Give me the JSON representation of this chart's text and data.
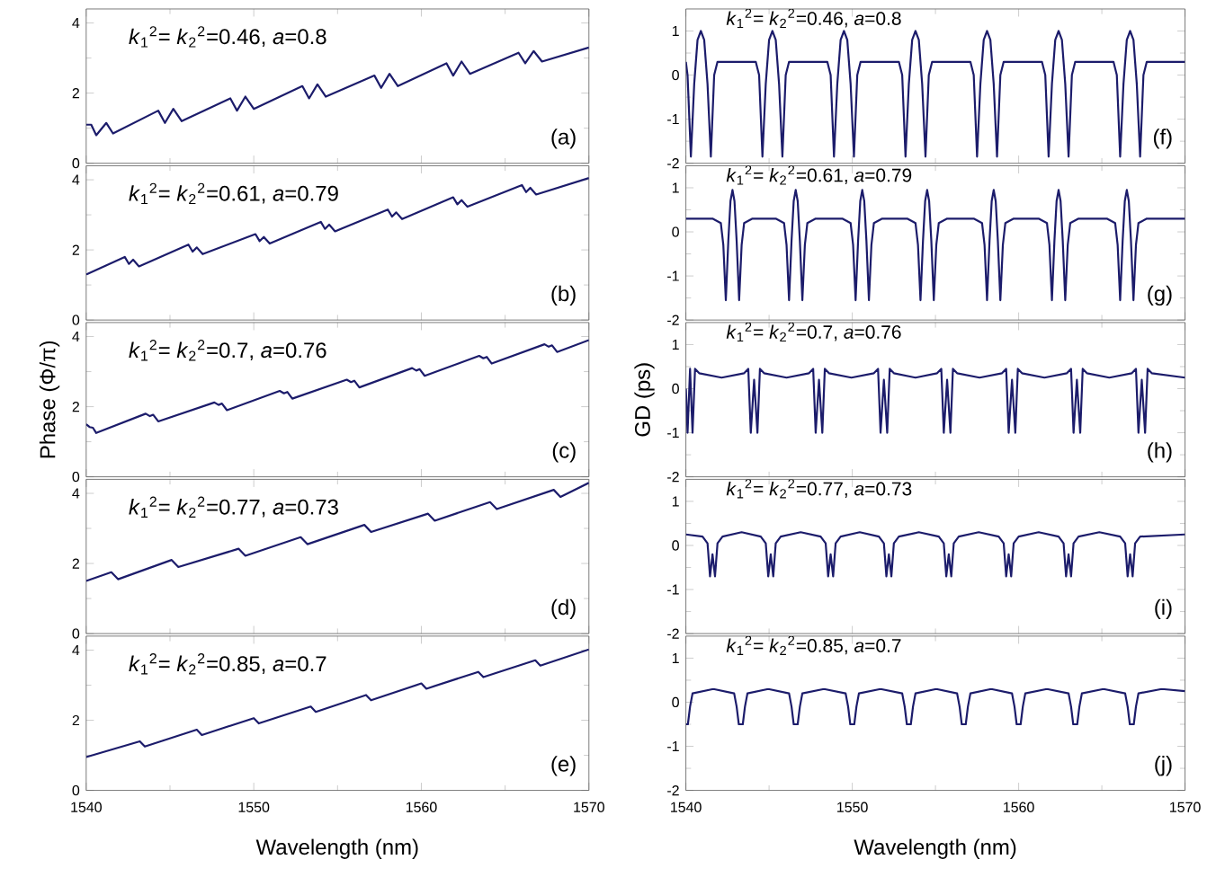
{
  "chart_data": [
    {
      "type": "line",
      "color": "#1c1c6b",
      "xlim": [
        1540,
        1570
      ],
      "ylim": [
        0,
        4.4
      ],
      "xticks": [
        1540,
        1550,
        1560,
        1570
      ],
      "yticks": [
        0,
        2,
        4
      ],
      "tick_labels": "y",
      "annotations": [
        "*k*$_{1}$$^{2}$= *k*$_{2}$$^{2}$=0.46, *a*=0.8",
        "(a)"
      ],
      "x": [
        1540,
        1540.3,
        1540.6,
        1541.2,
        1541.6,
        1544.3,
        1544.7,
        1545.2,
        1545.7,
        1548.6,
        1549.0,
        1549.5,
        1550.0,
        1552.9,
        1553.3,
        1553.8,
        1554.3,
        1557.2,
        1557.6,
        1558.1,
        1558.6,
        1561.5,
        1561.9,
        1562.4,
        1562.9,
        1565.8,
        1566.2,
        1566.7,
        1567.2,
        1570
      ],
      "values": [
        1.1,
        1.1,
        0.8,
        1.15,
        0.85,
        1.5,
        1.15,
        1.55,
        1.2,
        1.85,
        1.5,
        1.9,
        1.55,
        2.2,
        1.85,
        2.25,
        1.9,
        2.5,
        2.15,
        2.55,
        2.2,
        2.85,
        2.5,
        2.9,
        2.55,
        3.15,
        2.85,
        3.2,
        2.9,
        3.3
      ]
    },
    {
      "type": "line",
      "color": "#1c1c6b",
      "xlim": [
        1540,
        1570
      ],
      "ylim": [
        0,
        4.4
      ],
      "xticks": [
        1540,
        1550,
        1560,
        1570
      ],
      "yticks": [
        0,
        2,
        4
      ],
      "tick_labels": "y",
      "annotations": [
        "*k*$_{1}$$^{2}$= *k*$_{2}$$^{2}$=0.61, *a*=0.79",
        "(b)"
      ],
      "x": [
        1540,
        1542.3,
        1542.55,
        1542.8,
        1543.15,
        1546.1,
        1546.35,
        1546.6,
        1546.95,
        1550.1,
        1550.35,
        1550.6,
        1550.95,
        1554.0,
        1554.25,
        1554.5,
        1554.85,
        1558.0,
        1558.25,
        1558.5,
        1558.85,
        1561.9,
        1562.15,
        1562.4,
        1562.75,
        1566.0,
        1566.25,
        1566.5,
        1566.85,
        1570
      ],
      "values": [
        1.3,
        1.8,
        1.6,
        1.72,
        1.53,
        2.15,
        1.95,
        2.07,
        1.88,
        2.45,
        2.25,
        2.37,
        2.18,
        2.8,
        2.6,
        2.72,
        2.53,
        3.15,
        2.95,
        3.07,
        2.88,
        3.5,
        3.3,
        3.42,
        3.23,
        3.85,
        3.65,
        3.77,
        3.58,
        4.05
      ]
    },
    {
      "type": "line",
      "color": "#1c1c6b",
      "xlim": [
        1540,
        1570
      ],
      "ylim": [
        0,
        4.4
      ],
      "xticks": [
        1540,
        1550,
        1560,
        1570
      ],
      "yticks": [
        0,
        2,
        4
      ],
      "tick_labels": "y",
      "ylabel": "Phase (Φ/π)",
      "annotations": [
        "*k*$_{1}$$^{2}$= *k*$_{2}$$^{2}$=0.7, *a*=0.76",
        "(c)"
      ],
      "x": [
        1540,
        1540.2,
        1540.4,
        1540.6,
        1543.55,
        1543.8,
        1544.0,
        1544.3,
        1547.65,
        1547.9,
        1548.1,
        1548.4,
        1551.55,
        1551.8,
        1552.0,
        1552.3,
        1555.55,
        1555.8,
        1556.0,
        1556.3,
        1559.45,
        1559.7,
        1559.9,
        1560.2,
        1563.45,
        1563.7,
        1563.9,
        1564.2,
        1567.35,
        1567.6,
        1567.8,
        1568.1,
        1570
      ],
      "values": [
        1.5,
        1.42,
        1.4,
        1.25,
        1.8,
        1.73,
        1.77,
        1.58,
        2.12,
        2.05,
        2.09,
        1.9,
        2.45,
        2.38,
        2.42,
        2.23,
        2.77,
        2.7,
        2.74,
        2.55,
        3.1,
        3.03,
        3.07,
        2.88,
        3.45,
        3.38,
        3.42,
        3.23,
        3.78,
        3.71,
        3.75,
        3.56,
        3.9
      ]
    },
    {
      "type": "line",
      "color": "#1c1c6b",
      "xlim": [
        1540,
        1570
      ],
      "ylim": [
        0,
        4.4
      ],
      "xticks": [
        1540,
        1550,
        1560,
        1570
      ],
      "yticks": [
        0,
        2,
        4
      ],
      "tick_labels": "y",
      "annotations": [
        "*k*$_{1}$$^{2}$= *k*$_{2}$$^{2}$=0.77, *a*=0.73",
        "(d)"
      ],
      "x": [
        1540,
        1541.5,
        1541.9,
        1545.1,
        1545.5,
        1549.1,
        1549.5,
        1552.8,
        1553.2,
        1556.6,
        1557.0,
        1560.4,
        1560.8,
        1564.1,
        1564.5,
        1567.9,
        1568.3,
        1570
      ],
      "values": [
        1.5,
        1.75,
        1.55,
        2.1,
        1.9,
        2.42,
        2.22,
        2.75,
        2.55,
        3.1,
        2.9,
        3.42,
        3.22,
        3.75,
        3.55,
        4.1,
        3.9,
        4.3
      ]
    },
    {
      "type": "line",
      "color": "#1c1c6b",
      "xlim": [
        1540,
        1570
      ],
      "ylim": [
        0,
        4.4
      ],
      "xticks": [
        1540,
        1550,
        1560,
        1570
      ],
      "yticks": [
        0,
        2,
        4
      ],
      "xlabel": "Wavelength (nm)",
      "annotations": [
        "*k*$_{1}$$^{2}$= *k*$_{2}$$^{2}$=0.85, *a*=0.7",
        "(e)"
      ],
      "x": [
        1540,
        1543.2,
        1543.5,
        1546.6,
        1546.9,
        1550.0,
        1550.3,
        1553.4,
        1553.7,
        1556.7,
        1557.0,
        1560.0,
        1560.3,
        1563.4,
        1563.7,
        1566.8,
        1567.1,
        1570
      ],
      "values": [
        0.95,
        1.4,
        1.25,
        1.73,
        1.58,
        2.06,
        1.91,
        2.39,
        2.24,
        2.72,
        2.57,
        3.05,
        2.9,
        3.38,
        3.23,
        3.71,
        3.56,
        4.02
      ]
    },
    {
      "type": "line",
      "color": "#1c1c6b",
      "xlim": [
        1540,
        1570
      ],
      "ylim": [
        -2,
        1.5
      ],
      "xticks": [
        1540,
        1550,
        1560,
        1570
      ],
      "yticks": [
        -2,
        -1,
        0,
        1
      ],
      "tick_labels": "y",
      "annotations": [
        "*k*$_{1}$$^{2}$= *k*$_{2}$$^{2}$=0.46, *a*=0.8",
        "(f)"
      ],
      "x": [
        1540,
        1540.1,
        1540.3,
        1540.5,
        1540.7,
        1540.9,
        1541.1,
        1541.3,
        1541.5,
        1541.7,
        1541.9,
        1544.2,
        1544.4,
        1544.6,
        1544.8,
        1545.0,
        1545.2,
        1545.4,
        1545.6,
        1545.8,
        1546.0,
        1546.2,
        1548.5,
        1548.7,
        1548.9,
        1549.1,
        1549.3,
        1549.5,
        1549.7,
        1549.9,
        1550.1,
        1550.3,
        1550.5,
        1552.8,
        1553.0,
        1553.2,
        1553.4,
        1553.6,
        1553.8,
        1554.0,
        1554.2,
        1554.4,
        1554.6,
        1554.8,
        1557.1,
        1557.3,
        1557.5,
        1557.7,
        1557.9,
        1558.1,
        1558.3,
        1558.5,
        1558.7,
        1558.9,
        1559.1,
        1561.4,
        1561.6,
        1561.8,
        1562.0,
        1562.2,
        1562.4,
        1562.6,
        1562.8,
        1563.0,
        1563.2,
        1563.4,
        1565.7,
        1565.9,
        1566.1,
        1566.3,
        1566.5,
        1566.7,
        1566.9,
        1567.1,
        1567.3,
        1567.5,
        1567.7,
        1570
      ],
      "values": [
        0.3,
        0.0,
        -1.85,
        -0.2,
        0.8,
        1.0,
        0.8,
        -0.2,
        -1.85,
        0.0,
        0.3,
        0.3,
        0.0,
        -1.85,
        -0.2,
        0.8,
        1.0,
        0.8,
        -0.2,
        -1.85,
        0.0,
        0.3,
        0.3,
        0.0,
        -1.85,
        -0.2,
        0.8,
        1.0,
        0.8,
        -0.2,
        -1.85,
        0.0,
        0.3,
        0.3,
        0.0,
        -1.85,
        -0.2,
        0.8,
        1.0,
        0.8,
        -0.2,
        -1.85,
        0.0,
        0.3,
        0.3,
        0.0,
        -1.85,
        -0.2,
        0.8,
        1.0,
        0.8,
        -0.2,
        -1.85,
        0.0,
        0.3,
        0.3,
        0.0,
        -1.85,
        -0.2,
        0.8,
        1.0,
        0.8,
        -0.2,
        -1.85,
        0.0,
        0.3,
        0.3,
        0.0,
        -1.85,
        -0.2,
        0.8,
        1.0,
        0.8,
        -0.2,
        -1.85,
        0.0,
        0.3,
        0.3
      ]
    },
    {
      "type": "line",
      "color": "#1c1c6b",
      "xlim": [
        1540,
        1570
      ],
      "ylim": [
        -2,
        1.5
      ],
      "xticks": [
        1540,
        1550,
        1560,
        1570
      ],
      "yticks": [
        -2,
        -1,
        0,
        1
      ],
      "tick_labels": "y",
      "annotations": [
        "*k*$_{1}$$^{2}$= *k*$_{2}$$^{2}$=0.61, *a*=0.79",
        "(g)"
      ],
      "x": [
        1540,
        1541.6,
        1542.1,
        1542.25,
        1542.4,
        1542.55,
        1542.68,
        1542.8,
        1542.92,
        1543.05,
        1543.2,
        1543.35,
        1543.5,
        1544.0,
        1545.4,
        1545.9,
        1546.05,
        1546.2,
        1546.35,
        1546.48,
        1546.6,
        1546.72,
        1546.85,
        1547.0,
        1547.15,
        1547.3,
        1547.8,
        1549.4,
        1549.9,
        1550.05,
        1550.2,
        1550.35,
        1550.48,
        1550.6,
        1550.72,
        1550.85,
        1551.0,
        1551.15,
        1551.3,
        1551.8,
        1553.3,
        1553.8,
        1553.95,
        1554.1,
        1554.25,
        1554.38,
        1554.5,
        1554.62,
        1554.75,
        1554.9,
        1555.05,
        1555.2,
        1555.7,
        1557.3,
        1557.8,
        1557.95,
        1558.1,
        1558.25,
        1558.38,
        1558.5,
        1558.62,
        1558.75,
        1558.9,
        1559.05,
        1559.2,
        1559.7,
        1561.2,
        1561.7,
        1561.85,
        1562.0,
        1562.15,
        1562.28,
        1562.4,
        1562.52,
        1562.65,
        1562.8,
        1562.95,
        1563.1,
        1563.6,
        1565.3,
        1565.8,
        1565.95,
        1566.1,
        1566.25,
        1566.38,
        1566.5,
        1566.62,
        1566.75,
        1566.9,
        1567.05,
        1567.2,
        1567.7,
        1570
      ],
      "values": [
        0.3,
        0.3,
        0.2,
        -0.3,
        -1.55,
        -0.2,
        0.7,
        0.95,
        0.7,
        -0.2,
        -1.55,
        -0.3,
        0.2,
        0.3,
        0.3,
        0.2,
        -0.3,
        -1.55,
        -0.2,
        0.7,
        0.95,
        0.7,
        -0.2,
        -1.55,
        -0.3,
        0.2,
        0.3,
        0.3,
        0.2,
        -0.3,
        -1.55,
        -0.2,
        0.7,
        0.95,
        0.7,
        -0.2,
        -1.55,
        -0.3,
        0.2,
        0.3,
        0.3,
        0.2,
        -0.3,
        -1.55,
        -0.2,
        0.7,
        0.95,
        0.7,
        -0.2,
        -1.55,
        -0.3,
        0.2,
        0.3,
        0.3,
        0.2,
        -0.3,
        -1.55,
        -0.2,
        0.7,
        0.95,
        0.7,
        -0.2,
        -1.55,
        -0.3,
        0.2,
        0.3,
        0.3,
        0.2,
        -0.3,
        -1.55,
        -0.2,
        0.7,
        0.95,
        0.7,
        -0.2,
        -1.55,
        -0.3,
        0.2,
        0.3,
        0.3,
        0.2,
        -0.3,
        -1.55,
        -0.2,
        0.7,
        0.95,
        0.7,
        -0.2,
        -1.55,
        -0.3,
        0.2,
        0.3,
        0.3
      ]
    },
    {
      "type": "line",
      "color": "#1c1c6b",
      "xlim": [
        1540,
        1570
      ],
      "ylim": [
        -2,
        1.5
      ],
      "xticks": [
        1540,
        1550,
        1560,
        1570
      ],
      "yticks": [
        -2,
        -1,
        0,
        1
      ],
      "tick_labels": "y",
      "ylabel": "GD (ps)",
      "annotations": [
        "*k*$_{1}$$^{2}$= *k*$_{2}$$^{2}$=0.7, *a*=0.76",
        "(h)"
      ],
      "x": [
        1540,
        1540.1,
        1540.25,
        1540.4,
        1540.55,
        1540.8,
        1542.15,
        1543.5,
        1543.75,
        1543.9,
        1544.1,
        1544.3,
        1544.45,
        1544.7,
        1546.05,
        1547.4,
        1547.65,
        1547.8,
        1548.0,
        1548.2,
        1548.35,
        1548.6,
        1549.95,
        1551.3,
        1551.55,
        1551.7,
        1551.9,
        1552.1,
        1552.25,
        1552.5,
        1553.8,
        1555.1,
        1555.35,
        1555.5,
        1555.7,
        1555.9,
        1556.05,
        1556.3,
        1557.65,
        1559.0,
        1559.25,
        1559.4,
        1559.6,
        1559.8,
        1559.95,
        1560.2,
        1561.55,
        1562.9,
        1563.15,
        1563.3,
        1563.5,
        1563.7,
        1563.85,
        1564.1,
        1565.45,
        1566.8,
        1567.05,
        1567.2,
        1567.4,
        1567.6,
        1567.75,
        1568.0,
        1570
      ],
      "values": [
        0.0,
        -1.0,
        0.45,
        -1.0,
        0.45,
        0.35,
        0.25,
        0.35,
        0.45,
        -1.0,
        0.2,
        -1.0,
        0.45,
        0.35,
        0.25,
        0.35,
        0.45,
        -1.0,
        0.2,
        -1.0,
        0.45,
        0.35,
        0.25,
        0.35,
        0.45,
        -1.0,
        0.2,
        -1.0,
        0.45,
        0.35,
        0.25,
        0.35,
        0.45,
        -1.0,
        0.2,
        -1.0,
        0.45,
        0.35,
        0.25,
        0.35,
        0.45,
        -1.0,
        0.2,
        -1.0,
        0.45,
        0.35,
        0.25,
        0.35,
        0.45,
        -1.0,
        0.2,
        -1.0,
        0.45,
        0.35,
        0.25,
        0.35,
        0.45,
        -1.0,
        0.2,
        -1.0,
        0.45,
        0.35,
        0.25
      ]
    },
    {
      "type": "line",
      "color": "#1c1c6b",
      "xlim": [
        1540,
        1570
      ],
      "ylim": [
        -2,
        1.5
      ],
      "xticks": [
        1540,
        1550,
        1560,
        1570
      ],
      "yticks": [
        -2,
        -1,
        0,
        1
      ],
      "tick_labels": "y",
      "annotations": [
        "*k*$_{1}$$^{2}$= *k*$_{2}$$^{2}$=0.77, *a*=0.73",
        "(i)"
      ],
      "x": [
        1540,
        1541.0,
        1541.3,
        1541.45,
        1541.6,
        1541.75,
        1541.9,
        1542.2,
        1543.35,
        1544.5,
        1544.8,
        1544.95,
        1545.1,
        1545.25,
        1545.4,
        1545.7,
        1546.9,
        1548.1,
        1548.4,
        1548.55,
        1548.7,
        1548.85,
        1549.0,
        1549.3,
        1550.45,
        1551.6,
        1551.9,
        1552.05,
        1552.2,
        1552.35,
        1552.5,
        1552.8,
        1554.0,
        1555.2,
        1555.5,
        1555.65,
        1555.8,
        1555.95,
        1556.1,
        1556.4,
        1557.6,
        1558.8,
        1559.1,
        1559.25,
        1559.4,
        1559.55,
        1559.7,
        1560.0,
        1561.2,
        1562.4,
        1562.7,
        1562.85,
        1563.0,
        1563.15,
        1563.3,
        1563.6,
        1564.85,
        1566.1,
        1566.4,
        1566.55,
        1566.7,
        1566.85,
        1567.0,
        1567.3,
        1570
      ],
      "values": [
        0.25,
        0.2,
        0.05,
        -0.7,
        -0.2,
        -0.7,
        0.05,
        0.2,
        0.3,
        0.2,
        0.05,
        -0.7,
        -0.2,
        -0.7,
        0.05,
        0.2,
        0.3,
        0.2,
        0.05,
        -0.7,
        -0.2,
        -0.7,
        0.05,
        0.2,
        0.3,
        0.2,
        0.05,
        -0.7,
        -0.2,
        -0.7,
        0.05,
        0.2,
        0.3,
        0.2,
        0.05,
        -0.7,
        -0.2,
        -0.7,
        0.05,
        0.2,
        0.3,
        0.2,
        0.05,
        -0.7,
        -0.2,
        -0.7,
        0.05,
        0.2,
        0.3,
        0.2,
        0.05,
        -0.7,
        -0.2,
        -0.7,
        0.05,
        0.2,
        0.3,
        0.2,
        0.05,
        -0.7,
        -0.2,
        -0.7,
        0.05,
        0.2,
        0.25
      ]
    },
    {
      "type": "line",
      "color": "#1c1c6b",
      "xlim": [
        1540,
        1570
      ],
      "ylim": [
        -2,
        1.5
      ],
      "xticks": [
        1540,
        1550,
        1560,
        1570
      ],
      "yticks": [
        -2,
        -1,
        0,
        1
      ],
      "xlabel": "Wavelength (nm)",
      "annotations": [
        "*k*$_{1}$$^{2}$= *k*$_{2}$$^{2}$=0.85, *a*=0.7",
        "(j)"
      ],
      "x": [
        1540,
        1540.12,
        1540.25,
        1540.4,
        1541.65,
        1542.9,
        1543.05,
        1543.18,
        1543.42,
        1543.55,
        1543.7,
        1544.95,
        1546.2,
        1546.35,
        1546.48,
        1546.72,
        1546.85,
        1547.0,
        1548.3,
        1549.6,
        1549.75,
        1549.88,
        1550.12,
        1550.25,
        1550.4,
        1551.7,
        1553.0,
        1553.15,
        1553.28,
        1553.52,
        1553.65,
        1553.8,
        1555.05,
        1556.3,
        1556.45,
        1556.58,
        1556.82,
        1556.95,
        1557.1,
        1558.35,
        1559.6,
        1559.75,
        1559.88,
        1560.12,
        1560.25,
        1560.4,
        1561.7,
        1563.0,
        1563.15,
        1563.28,
        1563.52,
        1563.65,
        1563.8,
        1565.1,
        1566.4,
        1566.55,
        1566.68,
        1566.92,
        1567.05,
        1567.2,
        1568.6,
        1570
      ],
      "values": [
        -0.5,
        -0.5,
        -0.1,
        0.2,
        0.3,
        0.2,
        -0.1,
        -0.5,
        -0.5,
        -0.1,
        0.2,
        0.3,
        0.2,
        -0.1,
        -0.5,
        -0.5,
        -0.1,
        0.2,
        0.3,
        0.2,
        -0.1,
        -0.5,
        -0.5,
        -0.1,
        0.2,
        0.3,
        0.2,
        -0.1,
        -0.5,
        -0.5,
        -0.1,
        0.2,
        0.3,
        0.2,
        -0.1,
        -0.5,
        -0.5,
        -0.1,
        0.2,
        0.3,
        0.2,
        -0.1,
        -0.5,
        -0.5,
        -0.1,
        0.2,
        0.3,
        0.2,
        -0.1,
        -0.5,
        -0.5,
        -0.1,
        0.2,
        0.3,
        0.2,
        -0.1,
        -0.5,
        -0.5,
        -0.1,
        0.2,
        0.3,
        0.25
      ]
    }
  ]
}
